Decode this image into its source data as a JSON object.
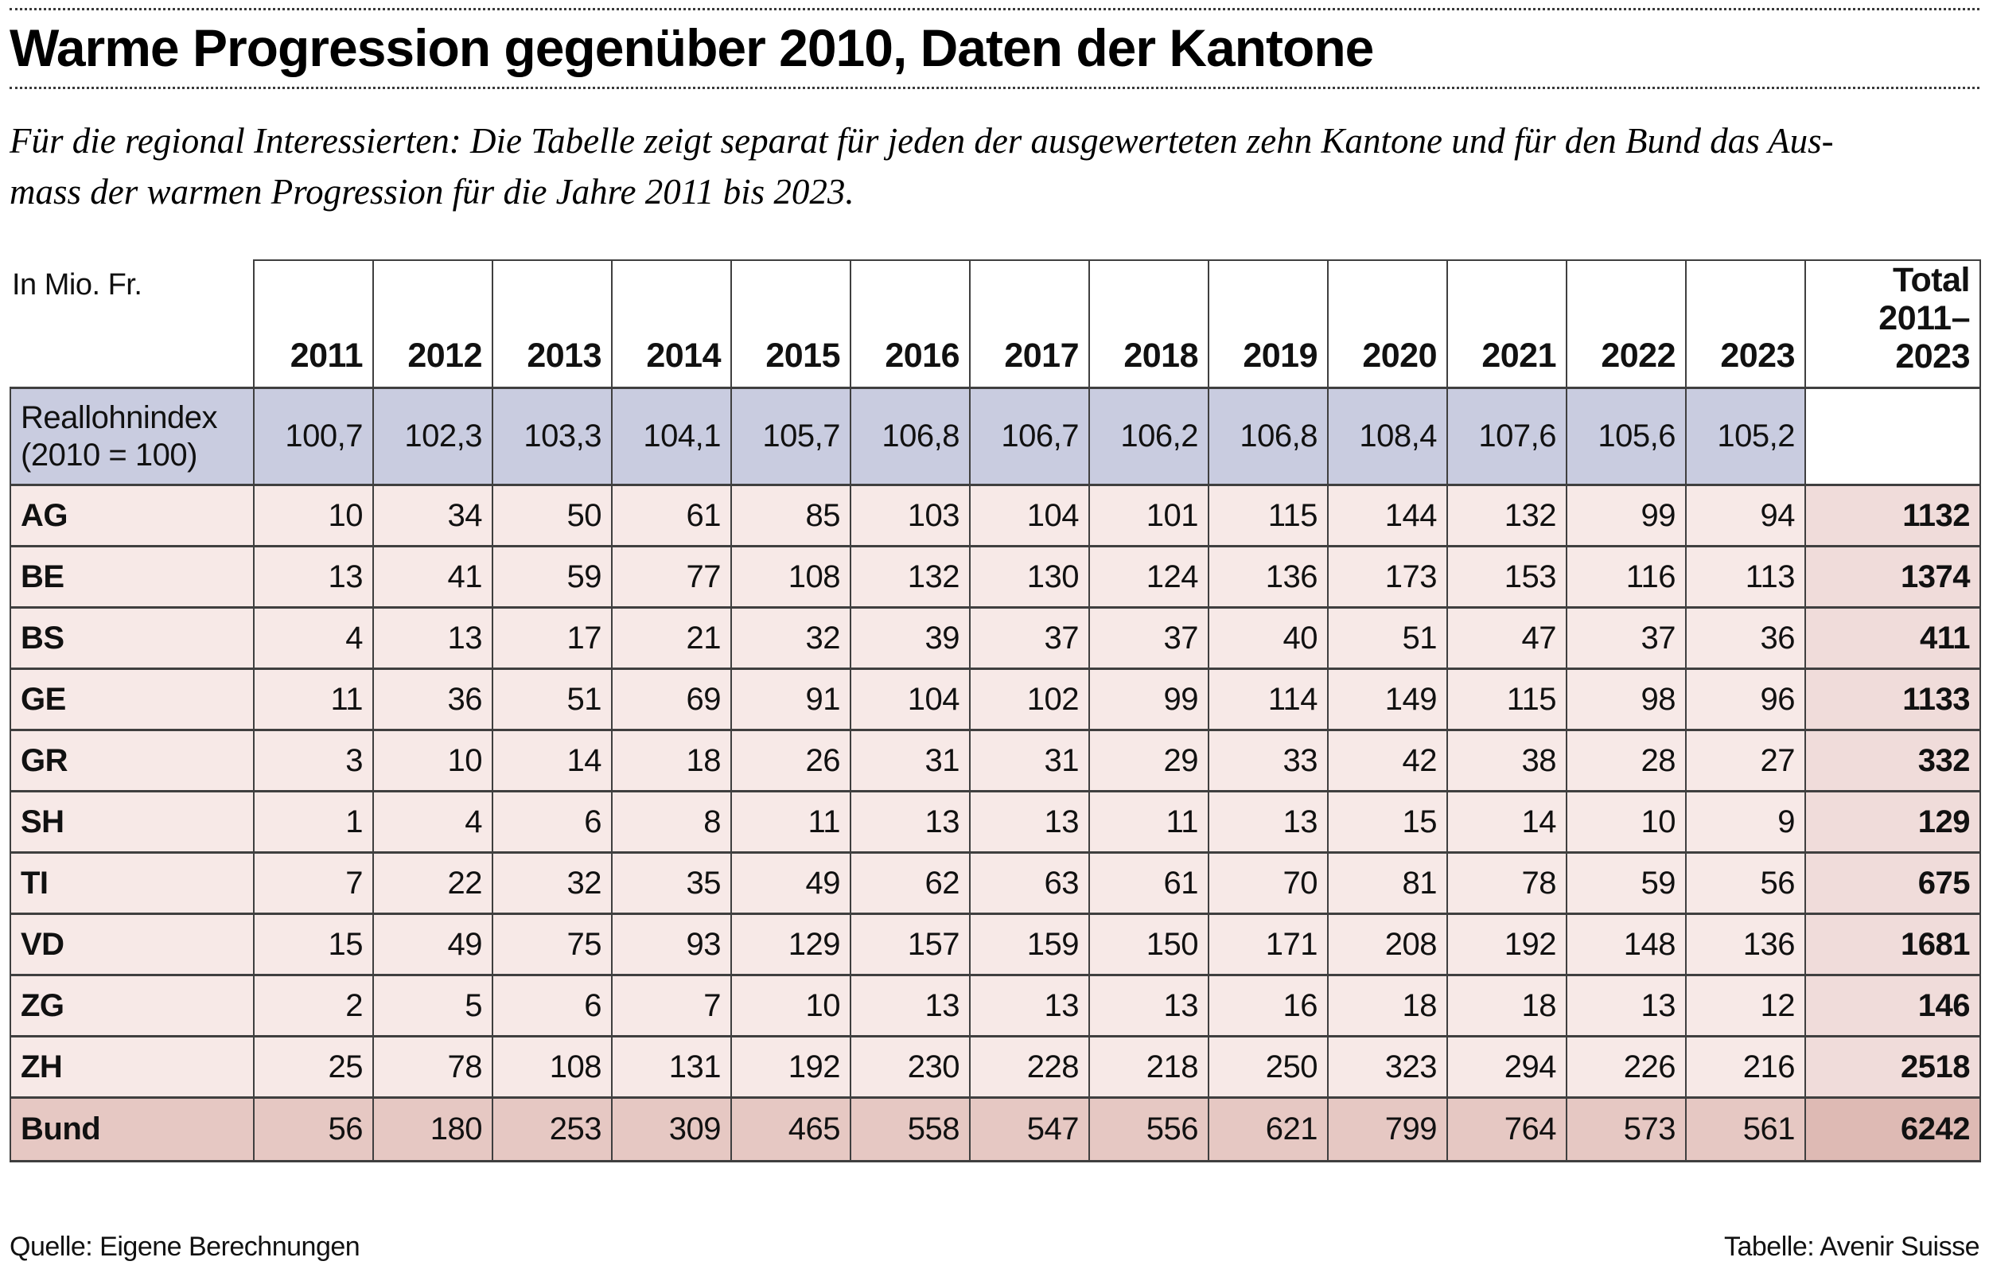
{
  "title": "Warme Progression gegenüber 2010, Daten der Kantone",
  "subtitle": "Für die regional Interessierten: Die Tabelle zeigt separat für jeden der ausgewerteten zehn Kantone und für den Bund das Aus-\nmass der warmen Progression für die Jahre 2011 bis 2023.",
  "footer": {
    "source": "Quelle: Eigene Berechnungen",
    "credit": "Tabelle: Avenir Suisse"
  },
  "colors": {
    "index_row_bg": "#c9cce0",
    "row_bg": "#f7e9e7",
    "total_col_bg": "#f0dcda",
    "bund_row_bg": "#e6c8c3",
    "bund_total_bg": "#debab4",
    "border": "#3f3f3f"
  },
  "chart_data": {
    "type": "table",
    "title": "Warme Progression gegenüber 2010, Daten der Kantone",
    "unit_label": "In Mio. Fr.",
    "columns": [
      "2011",
      "2012",
      "2013",
      "2014",
      "2015",
      "2016",
      "2017",
      "2018",
      "2019",
      "2020",
      "2021",
      "2022",
      "2023"
    ],
    "total_header": "Total\n2011–2023",
    "index_row": {
      "label": "Reallohnindex\n(2010 = 100)",
      "values": [
        "100,7",
        "102,3",
        "103,3",
        "104,1",
        "105,7",
        "106,8",
        "106,7",
        "106,2",
        "106,8",
        "108,4",
        "107,6",
        "105,6",
        "105,2"
      ],
      "total": ""
    },
    "rows": [
      {
        "label": "AG",
        "values": [
          "10",
          "34",
          "50",
          "61",
          "85",
          "103",
          "104",
          "101",
          "115",
          "144",
          "132",
          "99",
          "94"
        ],
        "total": "1132",
        "bund": false
      },
      {
        "label": "BE",
        "values": [
          "13",
          "41",
          "59",
          "77",
          "108",
          "132",
          "130",
          "124",
          "136",
          "173",
          "153",
          "116",
          "113"
        ],
        "total": "1374",
        "bund": false
      },
      {
        "label": "BS",
        "values": [
          "4",
          "13",
          "17",
          "21",
          "32",
          "39",
          "37",
          "37",
          "40",
          "51",
          "47",
          "37",
          "36"
        ],
        "total": "411",
        "bund": false
      },
      {
        "label": "GE",
        "values": [
          "11",
          "36",
          "51",
          "69",
          "91",
          "104",
          "102",
          "99",
          "114",
          "149",
          "115",
          "98",
          "96"
        ],
        "total": "1133",
        "bund": false
      },
      {
        "label": "GR",
        "values": [
          "3",
          "10",
          "14",
          "18",
          "26",
          "31",
          "31",
          "29",
          "33",
          "42",
          "38",
          "28",
          "27"
        ],
        "total": "332",
        "bund": false
      },
      {
        "label": "SH",
        "values": [
          "1",
          "4",
          "6",
          "8",
          "11",
          "13",
          "13",
          "11",
          "13",
          "15",
          "14",
          "10",
          "9"
        ],
        "total": "129",
        "bund": false
      },
      {
        "label": "TI",
        "values": [
          "7",
          "22",
          "32",
          "35",
          "49",
          "62",
          "63",
          "61",
          "70",
          "81",
          "78",
          "59",
          "56"
        ],
        "total": "675",
        "bund": false
      },
      {
        "label": "VD",
        "values": [
          "15",
          "49",
          "75",
          "93",
          "129",
          "157",
          "159",
          "150",
          "171",
          "208",
          "192",
          "148",
          "136"
        ],
        "total": "1681",
        "bund": false
      },
      {
        "label": "ZG",
        "values": [
          "2",
          "5",
          "6",
          "7",
          "10",
          "13",
          "13",
          "13",
          "16",
          "18",
          "18",
          "13",
          "12"
        ],
        "total": "146",
        "bund": false
      },
      {
        "label": "ZH",
        "values": [
          "25",
          "78",
          "108",
          "131",
          "192",
          "230",
          "228",
          "218",
          "250",
          "323",
          "294",
          "226",
          "216"
        ],
        "total": "2518",
        "bund": false
      },
      {
        "label": "Bund",
        "values": [
          "56",
          "180",
          "253",
          "309",
          "465",
          "558",
          "547",
          "556",
          "621",
          "799",
          "764",
          "573",
          "561"
        ],
        "total": "6242",
        "bund": true
      }
    ]
  }
}
